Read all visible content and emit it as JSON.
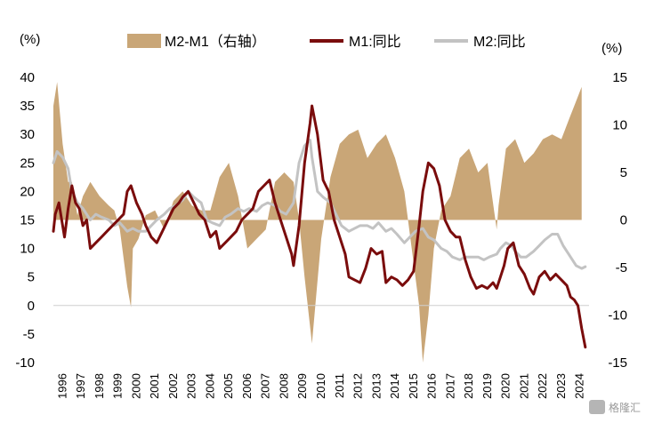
{
  "colors": {
    "m1": "#7a0c0c",
    "m2": "#c3c3c3",
    "spread": "#c9a677",
    "axis": "#cfcfcf"
  },
  "watermark": "格隆汇",
  "chart_data": {
    "type": "line",
    "left_unit": "(%)",
    "right_unit": "(%)",
    "legend_position": "top",
    "ylim_left": [
      -10,
      40
    ],
    "yticks_left": [
      "40",
      "35",
      "30",
      "25",
      "20",
      "15",
      "10",
      "5",
      "0",
      "-5",
      "-10"
    ],
    "ylim_right": [
      -15,
      15
    ],
    "yticks_right": [
      "15",
      "10",
      "5",
      "0",
      "-5",
      "-10",
      "-15"
    ],
    "x_range": [
      1996,
      2025
    ],
    "xticks": [
      "1996",
      "1997",
      "1998",
      "1999",
      "2000",
      "2001",
      "2002",
      "2003",
      "2004",
      "2005",
      "2006",
      "2007",
      "2008",
      "2009",
      "2010",
      "2011",
      "2012",
      "2013",
      "2014",
      "2015",
      "2016",
      "2017",
      "2018",
      "2019",
      "2020",
      "2021",
      "2022",
      "2023",
      "2024"
    ],
    "series": [
      {
        "name": "M2-M1（右轴）",
        "kind": "area",
        "axis": "right",
        "x": [
          1996.0,
          1996.2,
          1996.5,
          1996.8,
          1997.0,
          1997.3,
          1997.6,
          1998.0,
          1998.5,
          1999.0,
          1999.3,
          1999.6,
          2000.0,
          2000.2,
          2000.3,
          2000.6,
          2001.0,
          2001.5,
          2002.0,
          2002.5,
          2003.0,
          2003.5,
          2004.0,
          2004.5,
          2005.0,
          2005.5,
          2006.0,
          2006.5,
          2007.0,
          2007.5,
          2008.0,
          2008.5,
          2009.0,
          2009.3,
          2009.6,
          2010.0,
          2010.5,
          2011.0,
          2011.5,
          2012.0,
          2012.5,
          2013.0,
          2013.5,
          2014.0,
          2014.5,
          2015.0,
          2015.4,
          2015.8,
          2016.0,
          2016.3,
          2016.6,
          2017.0,
          2017.5,
          2018.0,
          2018.5,
          2019.0,
          2019.5,
          2020.0,
          2020.1,
          2020.5,
          2021.0,
          2021.5,
          2022.0,
          2022.5,
          2023.0,
          2023.5,
          2024.0,
          2024.3,
          2024.6
        ],
        "values": [
          12.0,
          14.5,
          8.0,
          4.0,
          4.0,
          0.5,
          2.5,
          4.0,
          2.5,
          1.5,
          1.0,
          -1.0,
          -7.0,
          -9.2,
          -3.0,
          -2.0,
          0.5,
          1.0,
          -1.0,
          2.0,
          3.0,
          1.5,
          1.0,
          1.0,
          4.5,
          6.0,
          2.5,
          -3.0,
          -2.0,
          -1.0,
          4.0,
          5.0,
          4.0,
          0.0,
          -6.0,
          -13.0,
          -2.0,
          4.5,
          8.0,
          9.0,
          9.5,
          6.5,
          8.0,
          9.0,
          6.5,
          3.0,
          -3.0,
          -9.0,
          -15.0,
          -10.0,
          -3.0,
          1.0,
          2.5,
          6.5,
          7.5,
          5.0,
          6.0,
          -1.0,
          1.5,
          7.5,
          8.5,
          6.0,
          7.0,
          8.5,
          9.0,
          8.5,
          11.0,
          12.5,
          14.0
        ]
      },
      {
        "name": "M1:同比",
        "kind": "line",
        "axis": "left",
        "x": [
          1996.0,
          1996.1,
          1996.3,
          1996.6,
          1996.8,
          1997.0,
          1997.2,
          1997.4,
          1997.6,
          1997.8,
          1998.0,
          1998.3,
          1998.6,
          1998.9,
          1999.2,
          1999.5,
          1999.8,
          2000.0,
          2000.2,
          2000.5,
          2000.8,
          2001.0,
          2001.3,
          2001.6,
          2001.9,
          2002.2,
          2002.5,
          2002.8,
          2003.0,
          2003.3,
          2003.6,
          2003.9,
          2004.2,
          2004.5,
          2004.8,
          2005.0,
          2005.3,
          2005.6,
          2005.9,
          2006.2,
          2006.5,
          2006.8,
          2007.1,
          2007.4,
          2007.7,
          2008.0,
          2008.3,
          2008.6,
          2008.9,
          2009.0,
          2009.3,
          2009.6,
          2009.9,
          2010.0,
          2010.3,
          2010.6,
          2010.9,
          2011.2,
          2011.5,
          2011.8,
          2012.0,
          2012.3,
          2012.6,
          2012.9,
          2013.2,
          2013.5,
          2013.8,
          2014.0,
          2014.3,
          2014.6,
          2014.9,
          2015.2,
          2015.5,
          2015.8,
          2016.0,
          2016.3,
          2016.6,
          2016.9,
          2017.2,
          2017.5,
          2017.8,
          2018.0,
          2018.3,
          2018.6,
          2018.9,
          2019.2,
          2019.5,
          2019.8,
          2020.0,
          2020.2,
          2020.4,
          2020.6,
          2020.9,
          2021.2,
          2021.5,
          2021.8,
          2022.0,
          2022.3,
          2022.6,
          2022.9,
          2023.2,
          2023.5,
          2023.8,
          2024.0,
          2024.2,
          2024.4,
          2024.6,
          2024.8
        ],
        "values": [
          13.0,
          16.0,
          18.0,
          12.0,
          17.0,
          21.0,
          18.0,
          17.0,
          14.0,
          15.0,
          10.0,
          11.0,
          12.0,
          13.0,
          14.0,
          15.0,
          16.0,
          20.0,
          21.0,
          18.0,
          16.0,
          14.0,
          12.0,
          11.0,
          13.0,
          15.0,
          17.0,
          18.0,
          19.0,
          20.0,
          18.0,
          16.0,
          15.0,
          12.0,
          13.0,
          10.0,
          11.0,
          12.0,
          13.0,
          15.0,
          16.0,
          17.0,
          20.0,
          21.0,
          22.0,
          18.0,
          15.0,
          12.0,
          9.0,
          7.0,
          14.0,
          25.0,
          32.0,
          35.0,
          30.0,
          22.0,
          20.0,
          15.0,
          12.0,
          9.0,
          5.0,
          4.5,
          4.0,
          6.5,
          10.0,
          9.0,
          9.5,
          4.0,
          5.0,
          4.5,
          3.5,
          4.5,
          6.0,
          14.0,
          20.0,
          25.0,
          24.0,
          21.0,
          15.0,
          13.0,
          12.0,
          12.0,
          8.0,
          5.0,
          3.0,
          3.5,
          3.0,
          4.0,
          3.0,
          5.0,
          7.0,
          10.0,
          11.0,
          7.0,
          5.5,
          3.0,
          2.0,
          5.0,
          6.0,
          4.5,
          5.5,
          4.5,
          3.5,
          1.5,
          1.0,
          0.0,
          -4.0,
          -7.3
        ]
      },
      {
        "name": "M2:同比",
        "kind": "line",
        "axis": "left",
        "x": [
          1996.0,
          1996.2,
          1996.5,
          1996.8,
          1997.0,
          1997.3,
          1997.6,
          1998.0,
          1998.3,
          1998.6,
          1999.0,
          1999.3,
          1999.6,
          2000.0,
          2000.3,
          2000.6,
          2001.0,
          2001.3,
          2001.6,
          2002.0,
          2002.3,
          2002.6,
          2003.0,
          2003.3,
          2003.6,
          2004.0,
          2004.3,
          2004.6,
          2005.0,
          2005.3,
          2005.6,
          2006.0,
          2006.3,
          2006.6,
          2007.0,
          2007.3,
          2007.6,
          2008.0,
          2008.3,
          2008.6,
          2009.0,
          2009.3,
          2009.6,
          2009.9,
          2010.0,
          2010.3,
          2010.6,
          2011.0,
          2011.3,
          2011.6,
          2012.0,
          2012.3,
          2012.6,
          2013.0,
          2013.3,
          2013.6,
          2014.0,
          2014.3,
          2014.6,
          2015.0,
          2015.3,
          2015.6,
          2016.0,
          2016.3,
          2016.6,
          2017.0,
          2017.3,
          2017.6,
          2018.0,
          2018.3,
          2018.6,
          2019.0,
          2019.3,
          2019.6,
          2020.0,
          2020.2,
          2020.5,
          2020.8,
          2021.0,
          2021.3,
          2021.6,
          2022.0,
          2022.3,
          2022.6,
          2023.0,
          2023.3,
          2023.6,
          2024.0,
          2024.3,
          2024.6,
          2024.8
        ],
        "values": [
          25.0,
          27.0,
          26.0,
          24.0,
          20.0,
          18.0,
          17.0,
          15.0,
          16.0,
          15.5,
          15.0,
          14.0,
          14.5,
          13.0,
          13.5,
          13.0,
          13.0,
          14.0,
          15.0,
          16.0,
          17.0,
          17.5,
          18.5,
          20.0,
          19.0,
          18.0,
          15.0,
          14.5,
          14.0,
          15.5,
          16.0,
          17.0,
          16.5,
          17.0,
          16.5,
          17.5,
          18.0,
          17.5,
          16.5,
          16.0,
          18.0,
          25.0,
          28.0,
          29.0,
          26.0,
          20.0,
          19.0,
          18.0,
          16.0,
          14.0,
          13.0,
          13.5,
          14.0,
          14.0,
          13.5,
          14.5,
          13.0,
          13.5,
          12.5,
          11.0,
          12.0,
          13.0,
          13.5,
          12.0,
          11.5,
          10.0,
          9.5,
          8.5,
          8.0,
          8.5,
          8.5,
          8.5,
          8.0,
          8.5,
          9.0,
          10.0,
          11.0,
          10.5,
          9.5,
          8.5,
          8.5,
          9.5,
          10.5,
          11.5,
          12.5,
          12.5,
          10.5,
          8.5,
          7.0,
          6.5,
          6.8
        ]
      }
    ]
  }
}
